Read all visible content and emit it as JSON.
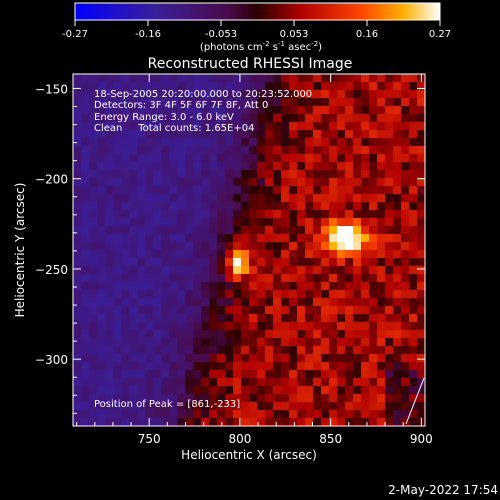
{
  "chart_data": {
    "type": "heatmap",
    "title": "Reconstructed RHESSI Image",
    "xlabel": "Heliocentric X (arcsec)",
    "ylabel": "Heliocentric Y (arcsec)",
    "xlim": [
      708,
      902
    ],
    "ylim": [
      -337,
      -142
    ],
    "x_ticks": [
      750,
      800,
      850,
      900
    ],
    "y_ticks": [
      -150,
      -200,
      -250,
      -300
    ],
    "colorbar": {
      "range": [
        -0.27,
        0.27
      ],
      "ticks": [
        "-0.27",
        "-0.16",
        "-0.053",
        "0.053",
        "0.16",
        "0.27"
      ],
      "units_text": "(photons cm",
      "units_exp1": "-2",
      "units_mid": " s",
      "units_exp2": "-1",
      "units_end": " asec",
      "units_exp3": "-2",
      "units_close": ")"
    },
    "annotations": [
      "18-Sep-2005 20:20:00.000 to 20:23:52.000",
      "Detectors: 3F 4F 5F 6F 7F 8F, Att 0",
      "Energy Range: 3.0 - 6.0 keV",
      "Clean     Total counts: 1.65E+04"
    ],
    "peak_label": "Position of Peak = [861,-233]",
    "sources": [
      {
        "x": 859,
        "y": -233,
        "sx": 9,
        "sy": 6,
        "amp": 0.27
      },
      {
        "x": 799,
        "y": -246,
        "sx": 4.5,
        "sy": 6,
        "amp": 0.24
      }
    ],
    "background": {
      "left_value": -0.12,
      "right_value": 0.06,
      "transition_x": 790
    }
  },
  "timestamp": "2-May-2022 17:54"
}
